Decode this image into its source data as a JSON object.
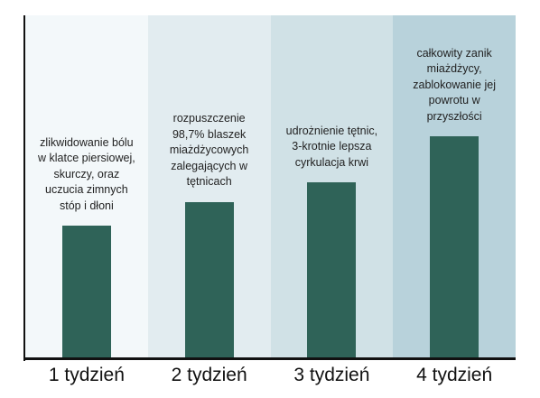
{
  "chart_data": {
    "type": "bar",
    "categories": [
      "1 tydzień",
      "2 tydzień",
      "3 tydzień",
      "4 tydzień"
    ],
    "values": [
      1,
      1.18,
      1.33,
      1.68
    ],
    "annotations": [
      "zlikwidowanie bólu\nw klatce piersiowej,\nskurczy, oraz\nuczucia zimnych\nstóp i dłoni",
      "rozpuszczenie\n98,7% blaszek\nmiażdżycowych\nzalegających w\ntętnicach",
      "udrożnienie tętnic,\n3-krotnie lepsza\ncyrkulacja krwi",
      "całkowity zanik\nmiażdżycy,\nzablokowanie jej\npowrotu w\nprzyszłości"
    ],
    "ylim": [
      0,
      2.6
    ],
    "grid": false,
    "colors": {
      "bar": "#2f6358",
      "panels": [
        "#f3f8fa",
        "#e2ecf0",
        "#d0e1e6",
        "#b8d2db"
      ]
    }
  }
}
